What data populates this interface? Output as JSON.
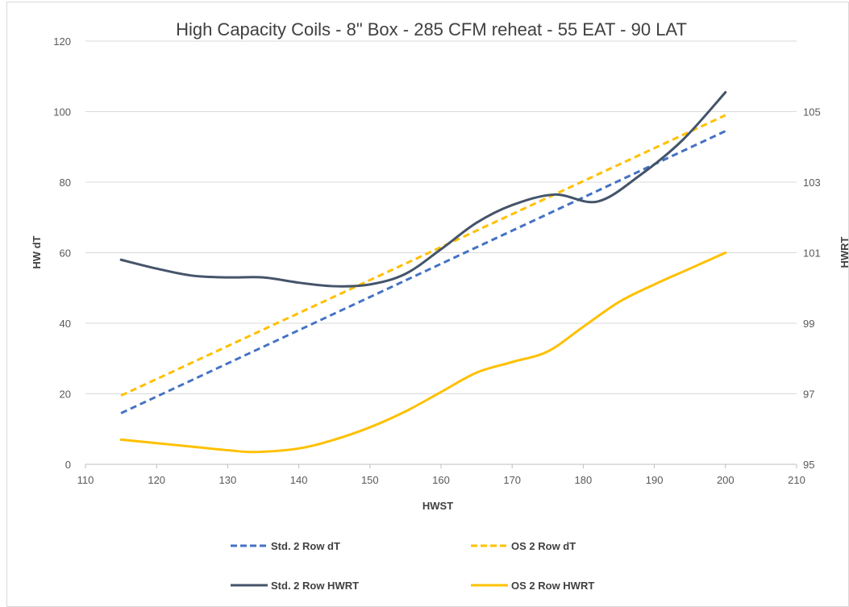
{
  "chart_data": {
    "type": "line",
    "title": "High Capacity Coils - 8\" Box - 285 CFM reheat - 55 EAT - 90 LAT",
    "xlabel": "HWST",
    "ylabel": "HW dT",
    "y2label": "HWRT",
    "xlim": [
      110,
      210
    ],
    "ylim": [
      0,
      120
    ],
    "y2lim": [
      95,
      107
    ],
    "x_ticks": [
      110,
      120,
      130,
      140,
      150,
      160,
      170,
      180,
      190,
      200,
      210
    ],
    "y_ticks": [
      0,
      20,
      40,
      60,
      80,
      100,
      120
    ],
    "y2_ticks": [
      95,
      97,
      99,
      101,
      103,
      105
    ],
    "grid": "horizontal",
    "legend_position": "bottom",
    "series": [
      {
        "name": "Std. 2 Row dT",
        "axis": "left",
        "style": "dashed",
        "color": "#4472c4",
        "x": [
          115,
          200
        ],
        "y": [
          14.5,
          94.5
        ]
      },
      {
        "name": "OS 2 Row dT",
        "axis": "left",
        "style": "dashed",
        "color": "#ffc000",
        "x": [
          115,
          200
        ],
        "y": [
          19.5,
          99
        ]
      },
      {
        "name": "Std. 2 Row HWRT",
        "axis": "right",
        "style": "solid",
        "color": "#44546a",
        "x": [
          115,
          120,
          125,
          130,
          135,
          140,
          145,
          150,
          155,
          160,
          165,
          170,
          176,
          182,
          188,
          194,
          200
        ],
        "y": [
          100.8,
          100.55,
          100.35,
          100.3,
          100.3,
          100.15,
          100.05,
          100.1,
          100.4,
          101.1,
          101.85,
          102.35,
          102.65,
          102.45,
          103.2,
          104.2,
          105.55
        ]
      },
      {
        "name": "OS 2 Row HWRT",
        "axis": "right",
        "style": "solid",
        "color": "#ffc000",
        "x": [
          115,
          120,
          125,
          130,
          134,
          140,
          145,
          150,
          155,
          160,
          165,
          170,
          175,
          180,
          185,
          190,
          195,
          200
        ],
        "y": [
          95.7,
          95.6,
          95.5,
          95.4,
          95.35,
          95.45,
          95.7,
          96.05,
          96.5,
          97.05,
          97.6,
          97.9,
          98.2,
          98.9,
          99.6,
          100.1,
          100.55,
          101.0
        ]
      }
    ]
  }
}
